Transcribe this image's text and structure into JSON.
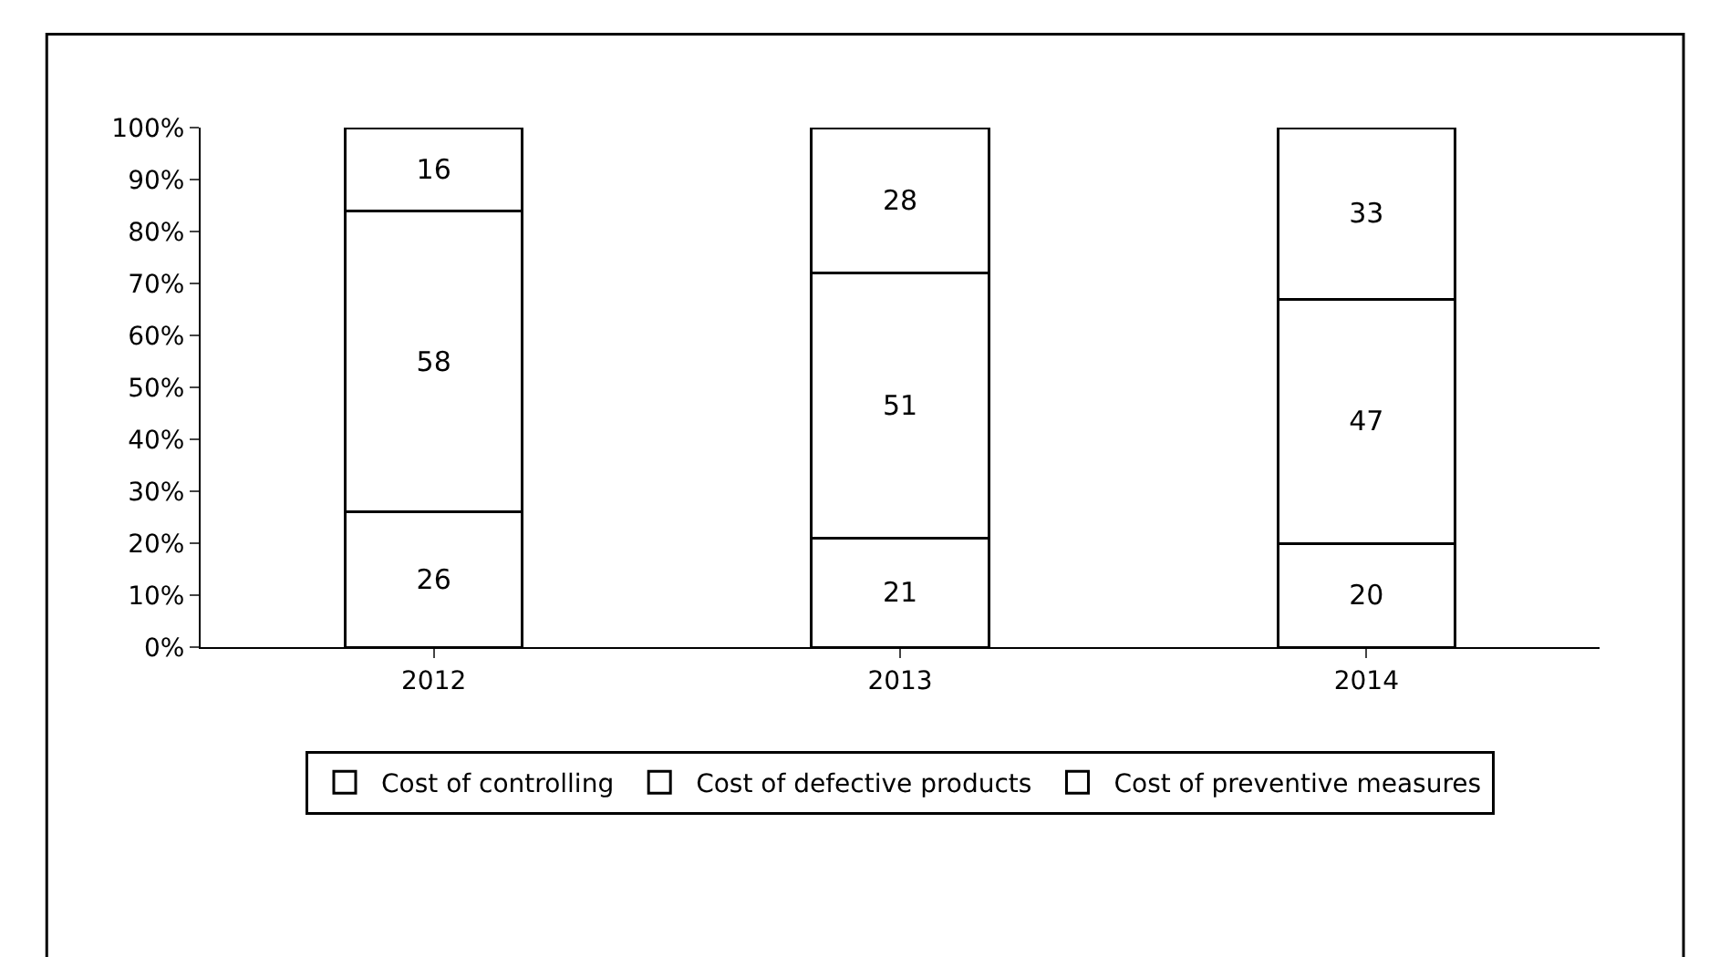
{
  "chart_data": {
    "type": "bar",
    "stacked": true,
    "categories": [
      "2012",
      "2013",
      "2014"
    ],
    "series": [
      {
        "name": "Cost of controlling",
        "color": "#ffffff",
        "values": [
          26,
          21,
          20
        ]
      },
      {
        "name": "Cost of defective products",
        "color": "#ffffff",
        "values": [
          58,
          51,
          47
        ]
      },
      {
        "name": "Cost of preventive measures",
        "color": "#ffffff",
        "values": [
          16,
          28,
          33
        ]
      }
    ],
    "data_labels": true,
    "ylim": [
      0,
      100
    ],
    "yticks": [
      {
        "value": 0,
        "label": "0%"
      },
      {
        "value": 10,
        "label": "10%"
      },
      {
        "value": 20,
        "label": "20%"
      },
      {
        "value": 30,
        "label": "30%"
      },
      {
        "value": 40,
        "label": "40%"
      },
      {
        "value": 50,
        "label": "50%"
      },
      {
        "value": 60,
        "label": "60%"
      },
      {
        "value": 70,
        "label": "70%"
      },
      {
        "value": 80,
        "label": "80%"
      },
      {
        "value": 90,
        "label": "90%"
      },
      {
        "value": 100,
        "label": "100%"
      }
    ],
    "grid": false,
    "legend": "bottom"
  }
}
